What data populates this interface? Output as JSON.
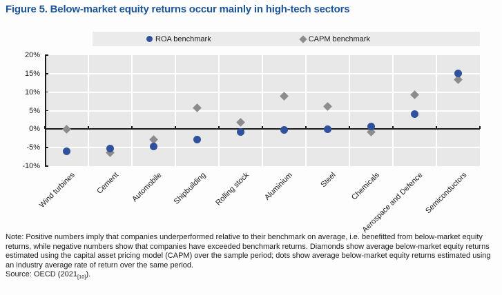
{
  "title": "Figure 5. Below-market equity returns occur mainly in high-tech sectors",
  "colors": {
    "title_blue": "#1D5496",
    "roa_blue": "#30519B",
    "capm_grey": "#8C8C8C",
    "plot_background": "#E8E8E8",
    "legend_background": "#EBEBEB",
    "gridline_white": "#FFFFFF",
    "axis_black": "#1A1A1A"
  },
  "chart_data": {
    "type": "scatter",
    "title": "Figure 5. Below-market equity returns occur mainly in high-tech sectors",
    "categories": [
      "Wind turbines",
      "Cement",
      "Automobile",
      "Shipbuilding",
      "Rolling stock",
      "Aluminium",
      "Steel",
      "Chemicals",
      "Aerospace and Defence",
      "Semiconductors"
    ],
    "series": [
      {
        "key": "roa",
        "name": "ROA benchmark",
        "marker": "circle",
        "color": "#30519B",
        "values": [
          -6.0,
          -5.3,
          -4.6,
          -2.8,
          -0.8,
          -0.3,
          0.0,
          0.8,
          4.0,
          15.0
        ]
      },
      {
        "key": "capm",
        "name": "CAPM benchmark",
        "marker": "diamond",
        "color": "#8C8C8C",
        "values": [
          0.0,
          -6.4,
          -2.8,
          5.8,
          1.9,
          8.9,
          6.1,
          -0.8,
          9.2,
          13.4
        ]
      }
    ],
    "xlabel": "",
    "ylabel": "",
    "ylim": [
      -10,
      20
    ],
    "ytick_step": 5,
    "ytick_suffix": "%",
    "grid": true,
    "legend_position": "top",
    "x_labels_rotated_degrees": -45
  },
  "note": {
    "text": "Note: Positive numbers imply that companies underperformed relative to their benchmark on average, i.e. benefitted from below-market equity returns, while negative numbers show that companies have exceeded benchmark returns. Diamonds show average below-market equity returns estimated using the capital asset pricing model (CAPM) over the sample period; dots show average below-market equity returns estimated using an industry average rate of return over the same period.",
    "source_prefix": "Source: OECD (2021",
    "source_sub": "[10]",
    "source_suffix": ")."
  }
}
